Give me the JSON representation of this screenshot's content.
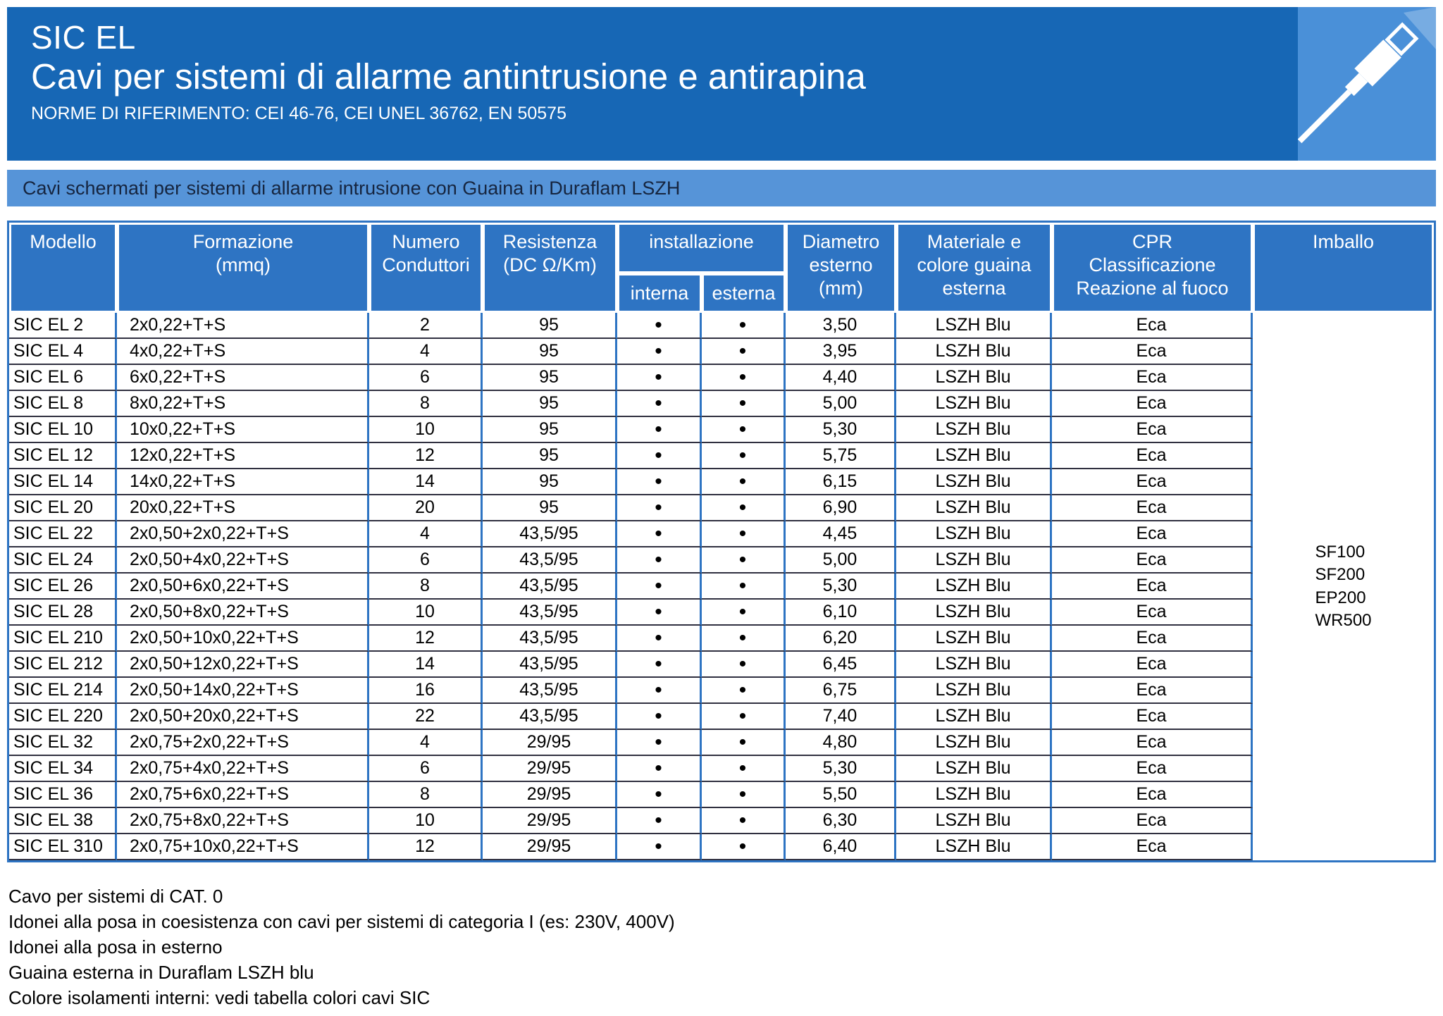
{
  "header": {
    "product": "SIC EL",
    "title": "Cavi per sistemi di allarme antintrusione e antirapina",
    "norms": "NORME DI RIFERIMENTO: CEI 46-76, CEI UNEL 36762, EN 50575"
  },
  "banner": {
    "text": "Cavi schermati per sistemi di allarme intrusione con Guaina in Duraflam LSZH"
  },
  "table": {
    "columns": {
      "modello": "Modello",
      "formazione": "Formazione\n(mmq)",
      "conduttori": "Numero\nConduttori",
      "resistenza": "Resistenza\n(DC Ω/Km)",
      "installazione": "installazione",
      "interna": "interna",
      "esterna": "esterna",
      "diametro": "Diametro\nesterno\n(mm)",
      "guaina": "Materiale e\ncolore guaina\nesterna",
      "cpr": "CPR\nClassificazione\nReazione al fuoco",
      "imballo": "Imballo"
    },
    "col_keys": [
      "modello",
      "formazione",
      "conduttori",
      "resistenza",
      "interna",
      "esterna",
      "diametro",
      "guaina",
      "cpr"
    ],
    "rows": [
      [
        "SIC EL 2",
        "2x0,22+T+S",
        "2",
        "95",
        "•",
        "•",
        "3,50",
        "LSZH Blu",
        "Eca"
      ],
      [
        "SIC EL 4",
        "4x0,22+T+S",
        "4",
        "95",
        "•",
        "•",
        "3,95",
        "LSZH Blu",
        "Eca"
      ],
      [
        "SIC EL 6",
        "6x0,22+T+S",
        "6",
        "95",
        "•",
        "•",
        "4,40",
        "LSZH Blu",
        "Eca"
      ],
      [
        "SIC EL 8",
        "8x0,22+T+S",
        "8",
        "95",
        "•",
        "•",
        "5,00",
        "LSZH Blu",
        "Eca"
      ],
      [
        "SIC EL 10",
        "10x0,22+T+S",
        "10",
        "95",
        "•",
        "•",
        "5,30",
        "LSZH Blu",
        "Eca"
      ],
      [
        "SIC EL 12",
        "12x0,22+T+S",
        "12",
        "95",
        "•",
        "•",
        "5,75",
        "LSZH Blu",
        "Eca"
      ],
      [
        "SIC EL 14",
        "14x0,22+T+S",
        "14",
        "95",
        "•",
        "•",
        "6,15",
        "LSZH Blu",
        "Eca"
      ],
      [
        "SIC EL 20",
        "20x0,22+T+S",
        "20",
        "95",
        "•",
        "•",
        "6,90",
        "LSZH Blu",
        "Eca"
      ],
      [
        "SIC EL 22",
        "2x0,50+2x0,22+T+S",
        "4",
        "43,5/95",
        "•",
        "•",
        "4,45",
        "LSZH Blu",
        "Eca"
      ],
      [
        "SIC EL 24",
        "2x0,50+4x0,22+T+S",
        "6",
        "43,5/95",
        "•",
        "•",
        "5,00",
        "LSZH Blu",
        "Eca"
      ],
      [
        "SIC EL 26",
        "2x0,50+6x0,22+T+S",
        "8",
        "43,5/95",
        "•",
        "•",
        "5,30",
        "LSZH Blu",
        "Eca"
      ],
      [
        "SIC EL 28",
        "2x0,50+8x0,22+T+S",
        "10",
        "43,5/95",
        "•",
        "•",
        "6,10",
        "LSZH Blu",
        "Eca"
      ],
      [
        "SIC EL 210",
        "2x0,50+10x0,22+T+S",
        "12",
        "43,5/95",
        "•",
        "•",
        "6,20",
        "LSZH Blu",
        "Eca"
      ],
      [
        "SIC EL 212",
        "2x0,50+12x0,22+T+S",
        "14",
        "43,5/95",
        "•",
        "•",
        "6,45",
        "LSZH Blu",
        "Eca"
      ],
      [
        "SIC EL 214",
        "2x0,50+14x0,22+T+S",
        "16",
        "43,5/95",
        "•",
        "•",
        "6,75",
        "LSZH Blu",
        "Eca"
      ],
      [
        "SIC EL 220",
        "2x0,50+20x0,22+T+S",
        "22",
        "43,5/95",
        "•",
        "•",
        "7,40",
        "LSZH Blu",
        "Eca"
      ],
      [
        "SIC EL 32",
        "2x0,75+2x0,22+T+S",
        "4",
        "29/95",
        "•",
        "•",
        "4,80",
        "LSZH Blu",
        "Eca"
      ],
      [
        "SIC EL 34",
        "2x0,75+4x0,22+T+S",
        "6",
        "29/95",
        "•",
        "•",
        "5,30",
        "LSZH Blu",
        "Eca"
      ],
      [
        "SIC EL 36",
        "2x0,75+6x0,22+T+S",
        "8",
        "29/95",
        "•",
        "•",
        "5,50",
        "LSZH Blu",
        "Eca"
      ],
      [
        "SIC EL 38",
        "2x0,75+8x0,22+T+S",
        "10",
        "29/95",
        "•",
        "•",
        "6,30",
        "LSZH Blu",
        "Eca"
      ],
      [
        "SIC EL 310",
        "2x0,75+10x0,22+T+S",
        "12",
        "29/95",
        "•",
        "•",
        "6,40",
        "LSZH Blu",
        "Eca"
      ]
    ],
    "imballo": [
      "SF100",
      "SF200",
      "EP200",
      "WR500"
    ]
  },
  "footer": {
    "notes": [
      "Cavo per sistemi di CAT. 0",
      "Idonei alla posa in coesistenza con cavi per sistemi di categoria I (es: 230V, 400V)",
      "Idonei alla posa in esterno",
      "Guaina esterna in Duraflam LSZH blu",
      "Colore isolamenti interni: vedi tabella colori cavi SIC"
    ]
  },
  "colors": {
    "band_blue": "#1767b5",
    "banner_blue": "#5694d8",
    "header_cell_blue": "#2e74c3",
    "grid_blue": "#2e74c3",
    "row_line": "#303040",
    "illustration_blue": "#4a90d8"
  }
}
